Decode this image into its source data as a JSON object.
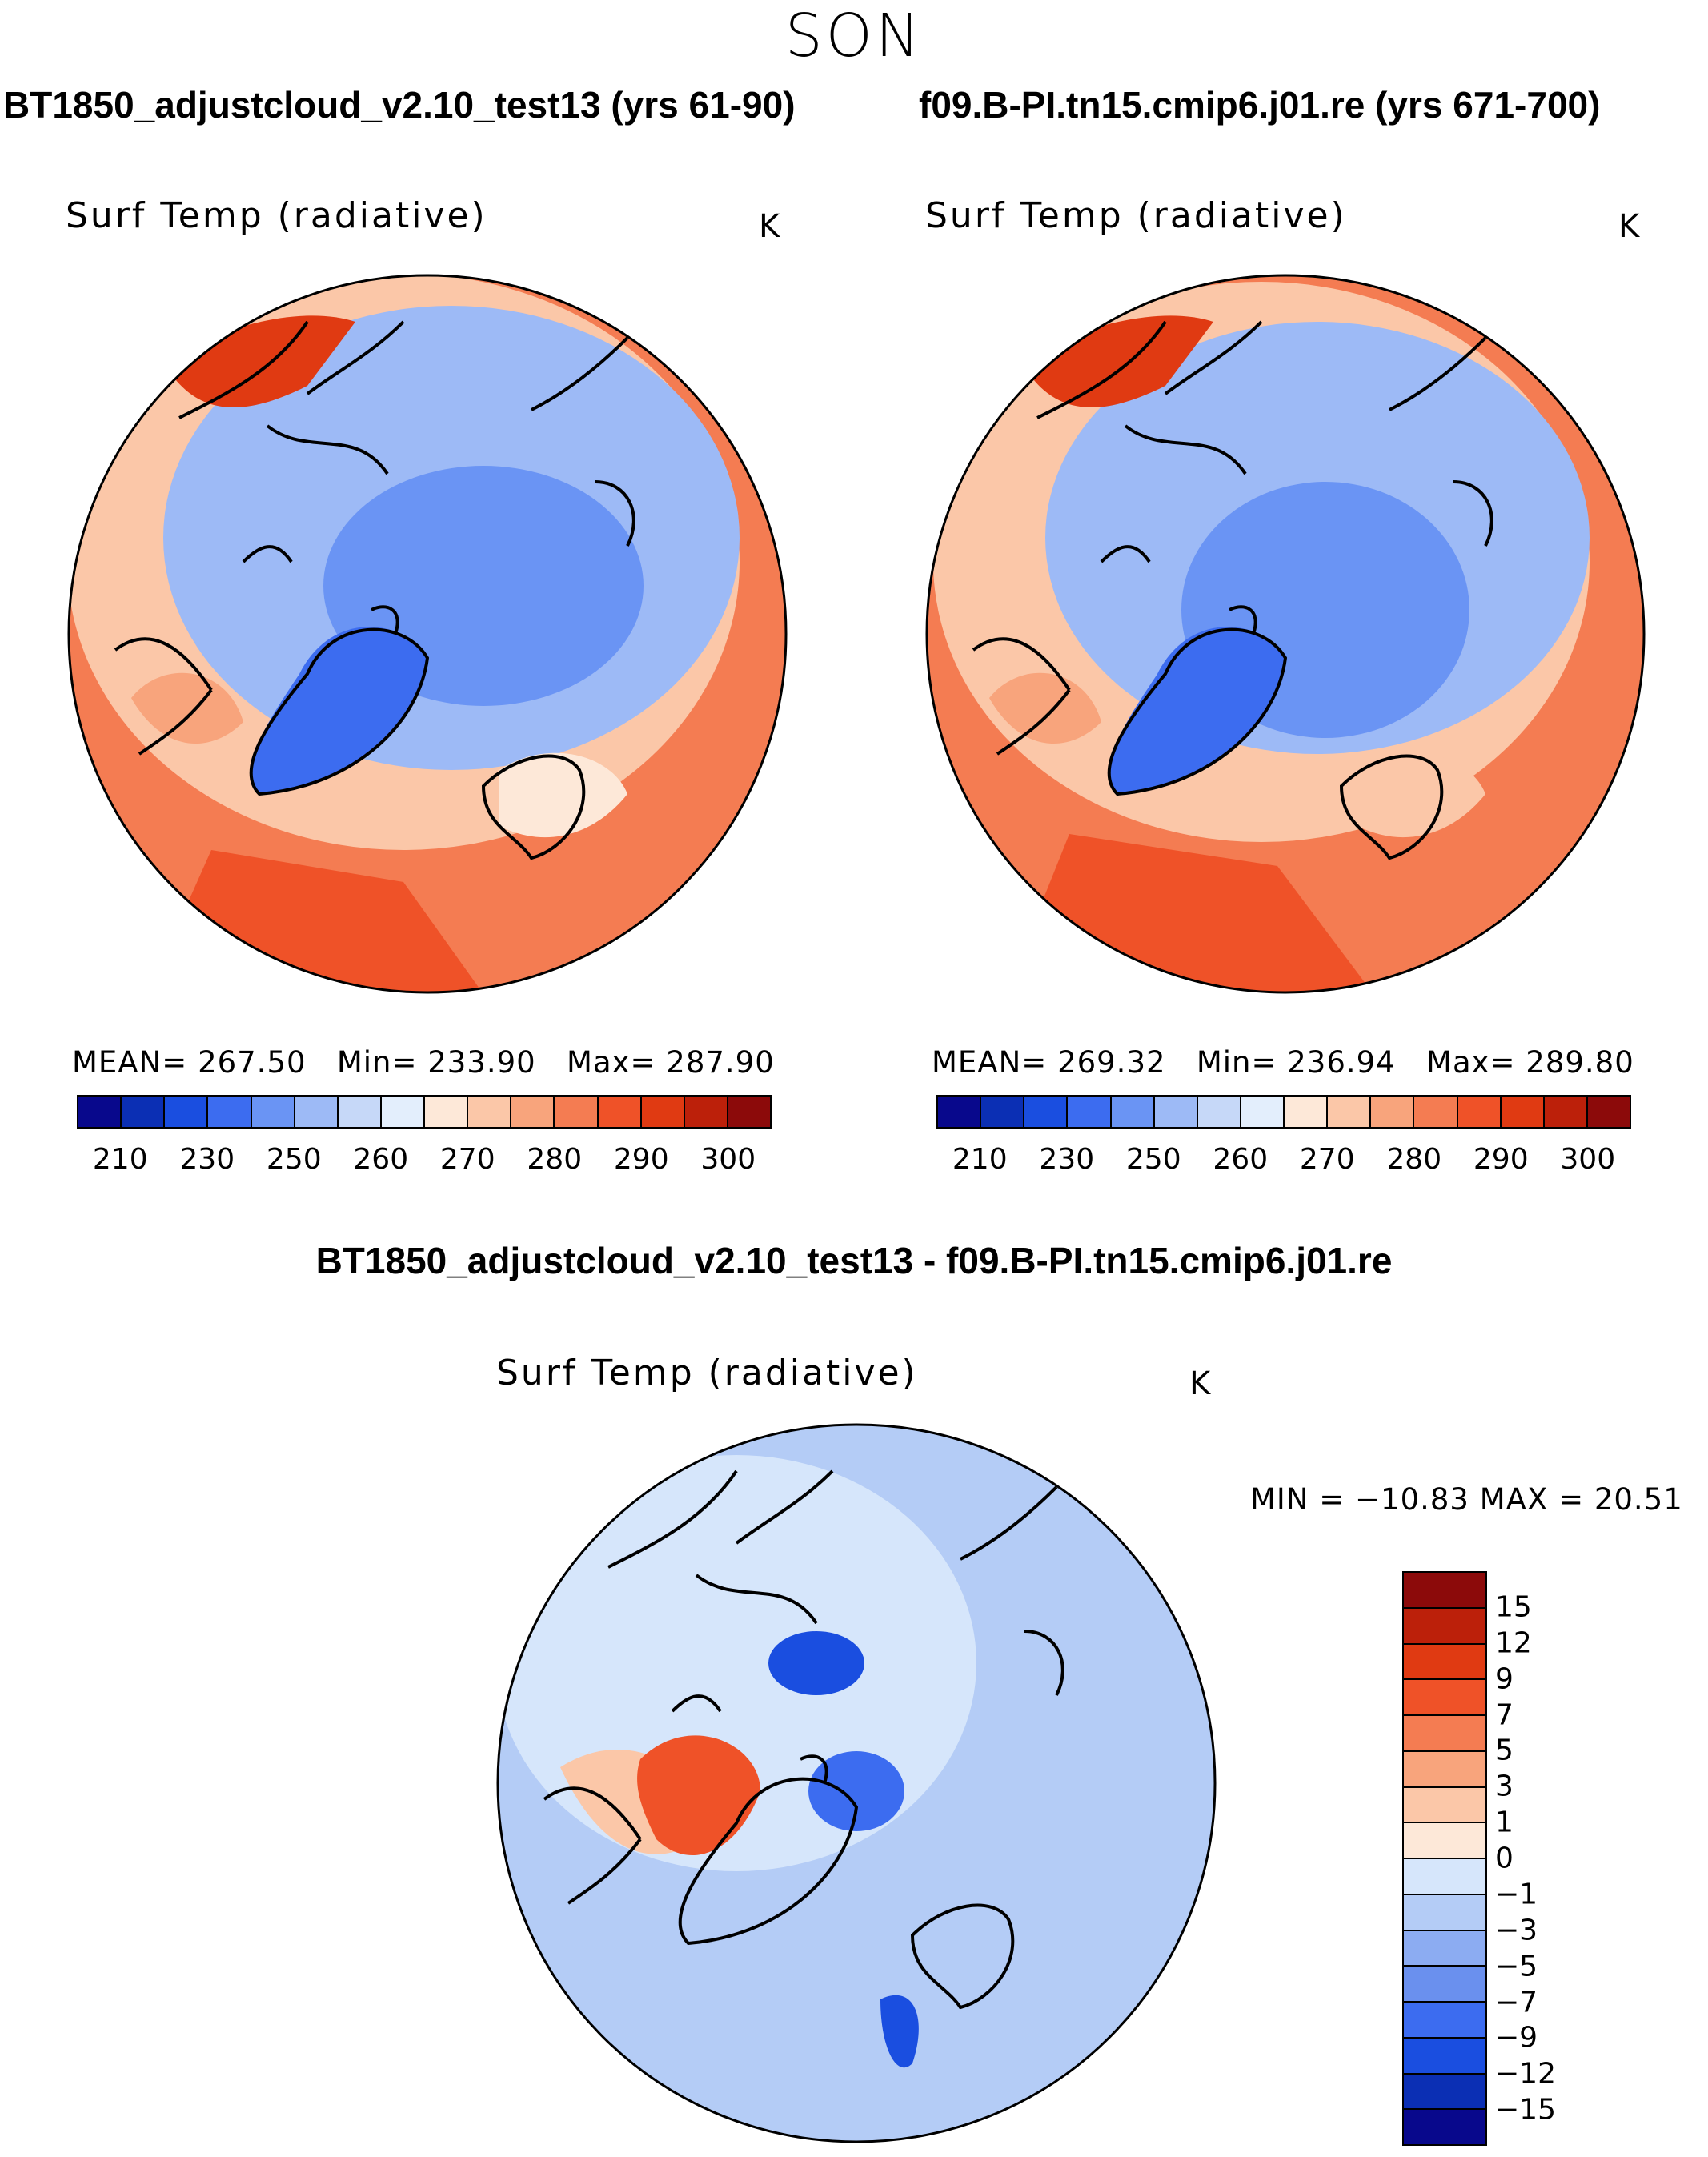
{
  "season": "SON",
  "case_titles": {
    "left": "BT1850_adjustcloud_v2.10_test13 (yrs 61-90)",
    "right": "f09.B-PI.tn15.cmip6.j01.re (yrs 671-700)",
    "diff": "BT1850_adjustcloud_v2.10_test13 - f09.B-PI.tn15.cmip6.j01.re"
  },
  "panels": {
    "left": {
      "field": "Surf Temp (radiative)",
      "units": "K",
      "mean_label": "MEAN=",
      "mean": "267.50",
      "min_label": "Min=",
      "min": "233.90",
      "max_label": "Max=",
      "max": "287.90"
    },
    "right": {
      "field": "Surf Temp (radiative)",
      "units": "K",
      "mean_label": "MEAN=",
      "mean": "269.32",
      "min_label": "Min=",
      "min": "236.94",
      "max_label": "Max=",
      "max": "289.80"
    },
    "diff": {
      "field": "Surf Temp (radiative)",
      "units": "K",
      "range_text": "MIN = −10.83 MAX =   20.51"
    }
  },
  "abs_colorbar": {
    "colors": [
      "#08088c",
      "#0b2fb4",
      "#1a4ee0",
      "#3c6cf0",
      "#6a94f4",
      "#9dbaf6",
      "#c6d8f8",
      "#e3eefc",
      "#fde8d8",
      "#fbc7a8",
      "#f8a47c",
      "#f47c52",
      "#ef5228",
      "#e03a12",
      "#bc200a",
      "#8c0a0a"
    ],
    "ticks": [
      "210",
      "230",
      "250",
      "260",
      "270",
      "280",
      "290",
      "300"
    ]
  },
  "diff_colorbar": {
    "colors": [
      "#8c0a0a",
      "#bc200a",
      "#e03a12",
      "#ef5228",
      "#f47c52",
      "#f8a47c",
      "#fbc7a8",
      "#fde8d8",
      "#d6e6fb",
      "#b4ccf6",
      "#8cacf2",
      "#6a90ee",
      "#3c6cf0",
      "#1a4ee0",
      "#0b2fb4",
      "#08088c"
    ],
    "ticks": [
      "15",
      "12",
      "9",
      "7",
      "5",
      "3",
      "1",
      "0",
      "−1",
      "−3",
      "−5",
      "−7",
      "−9",
      "−12",
      "−15"
    ]
  },
  "map_legend_regions": {
    "abs_warm": "#f47c52",
    "abs_mid": "#fbc7a8",
    "abs_cold": "#9dbaf6",
    "abs_polar": "#6a94f4",
    "abs_greenland": "#3c6cf0",
    "diff_base": "#b4ccf6",
    "diff_light": "#d6e6fb",
    "diff_warm": "#ef5228",
    "diff_cold": "#3c6cf0"
  }
}
